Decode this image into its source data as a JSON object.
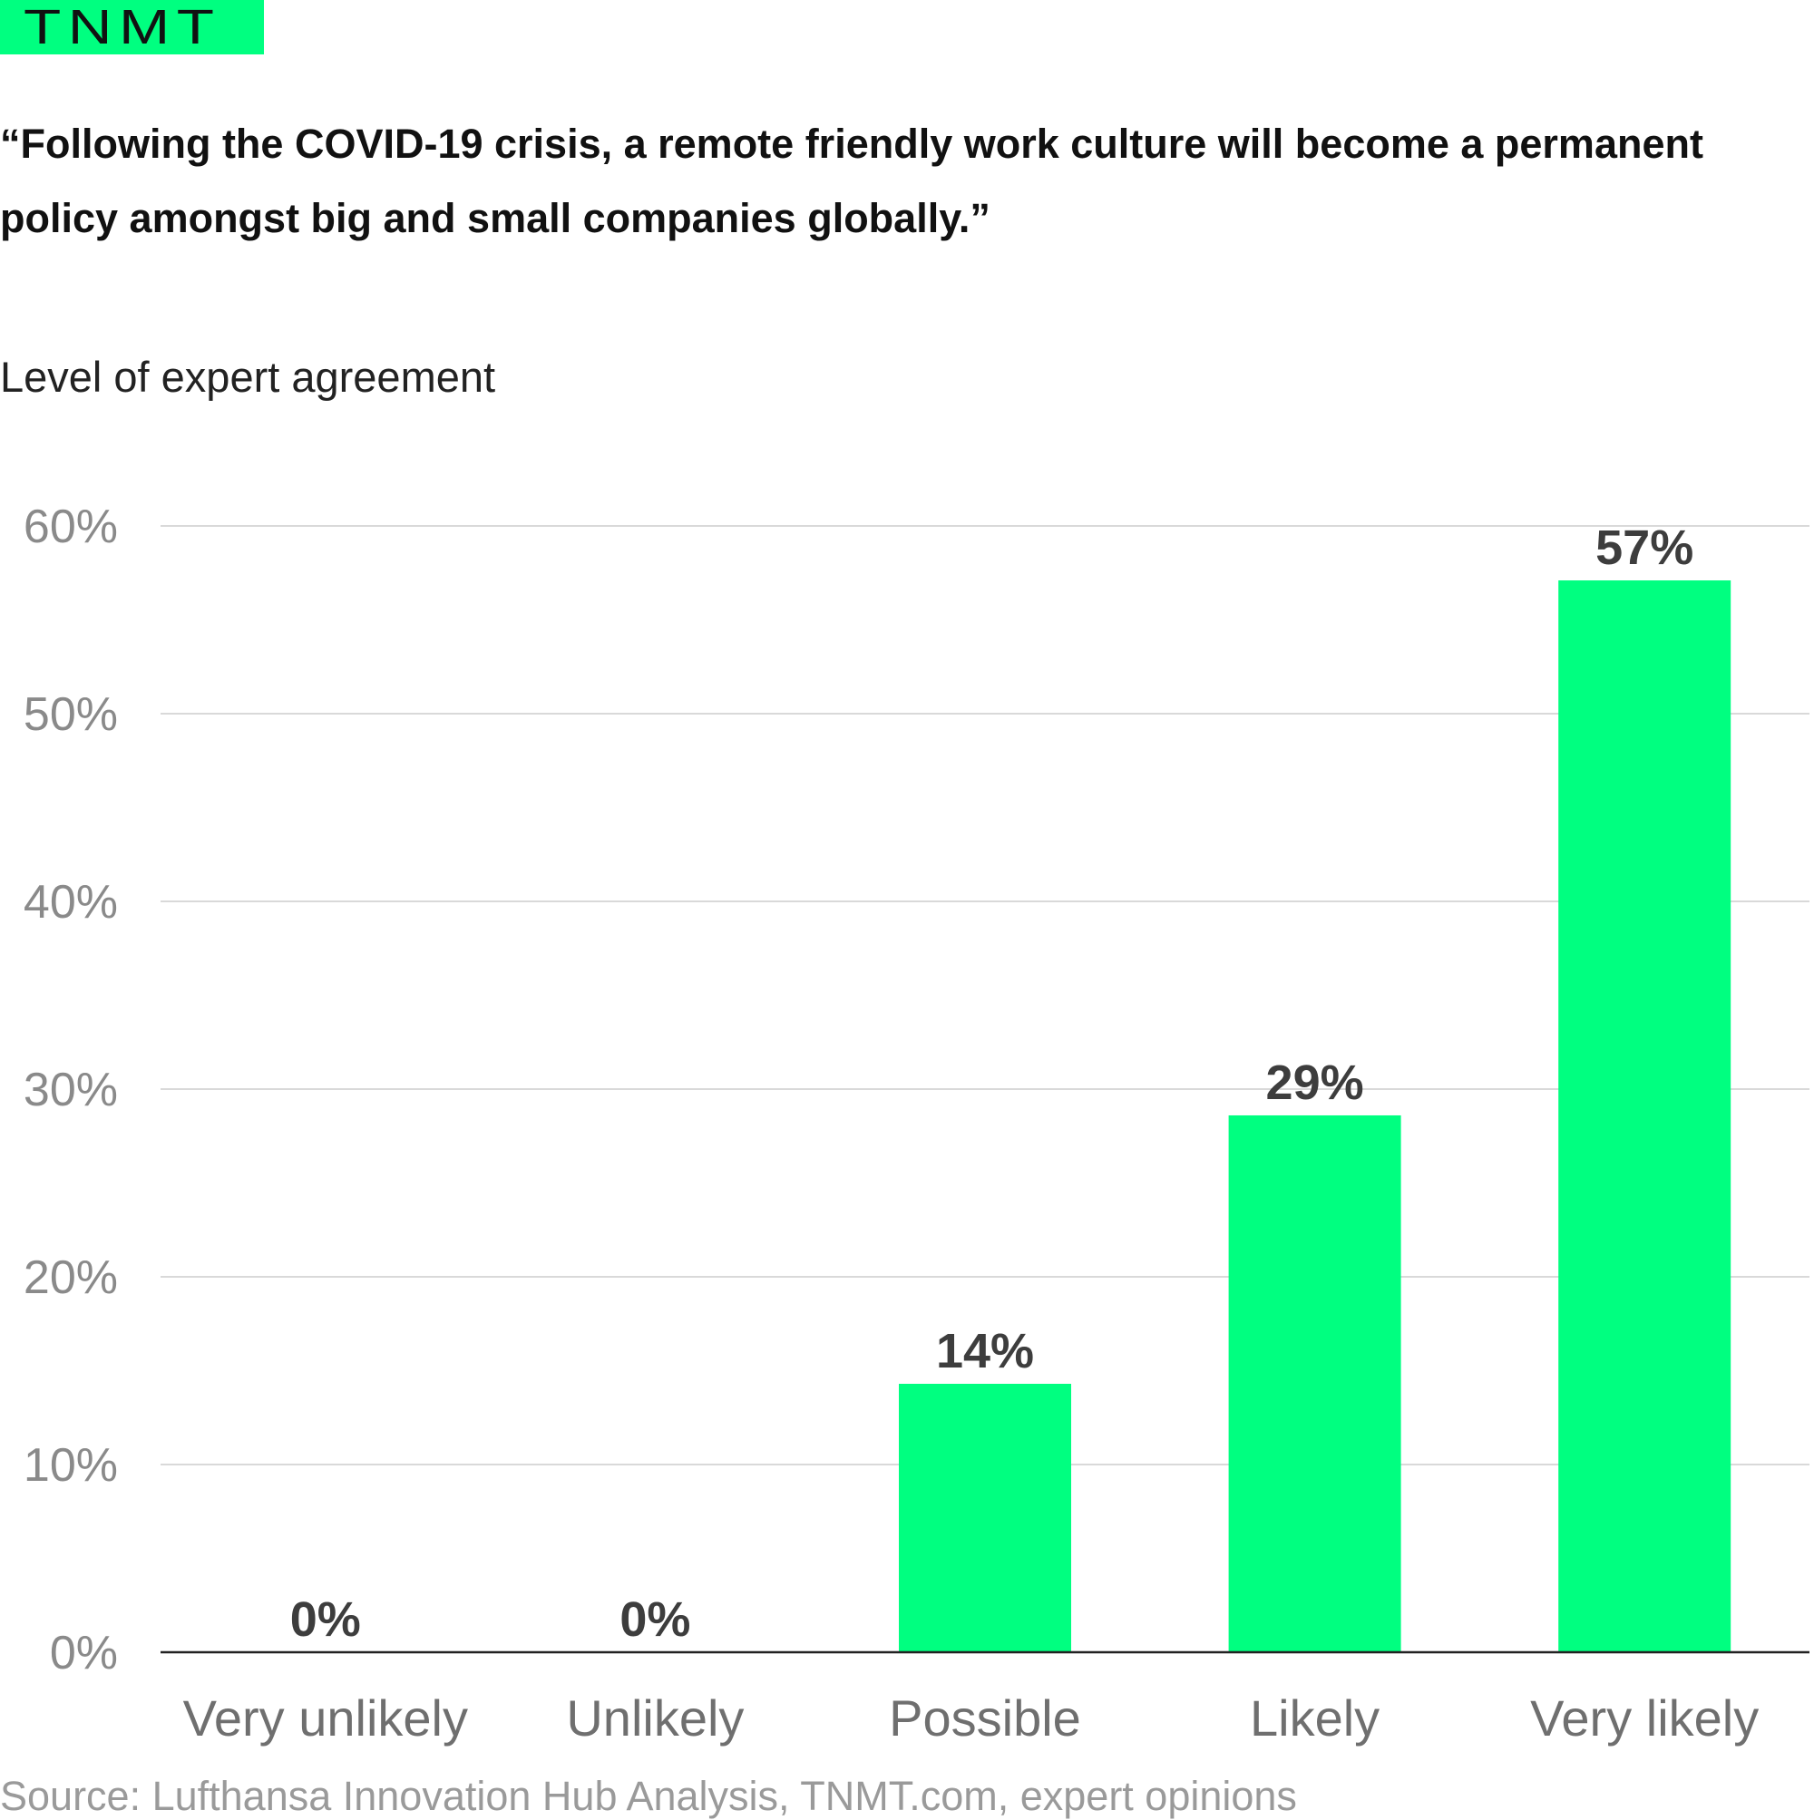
{
  "logo": {
    "text": "TNMT"
  },
  "colors": {
    "accent": "#00ff80",
    "text": "#111111",
    "grid": "#d9d9d9",
    "tick": "#8a8a8a",
    "value_label": "#3d3d3d"
  },
  "chart_data": {
    "type": "bar",
    "title": "“Following the COVID-19 crisis, a remote friendly work culture will become a permanent policy amongst big and small companies globally.”",
    "subtitle": "Level of expert agreement",
    "categories": [
      "Very unlikely",
      "Unlikely",
      "Possible",
      "Likely",
      "Very likely"
    ],
    "values": [
      0,
      0,
      14.3,
      28.6,
      57.1
    ],
    "value_labels": [
      "0%",
      "0%",
      "14%",
      "29%",
      "57%"
    ],
    "ylim": [
      0,
      60
    ],
    "yticks": [
      0,
      10,
      20,
      30,
      40,
      50,
      60
    ],
    "ytick_labels": [
      "0%",
      "10%",
      "20%",
      "30%",
      "40%",
      "50%",
      "60%"
    ],
    "grid": true,
    "legend": "none",
    "source": "Source: Lufthansa Innovation Hub Analysis, TNMT.com, expert opinions"
  }
}
